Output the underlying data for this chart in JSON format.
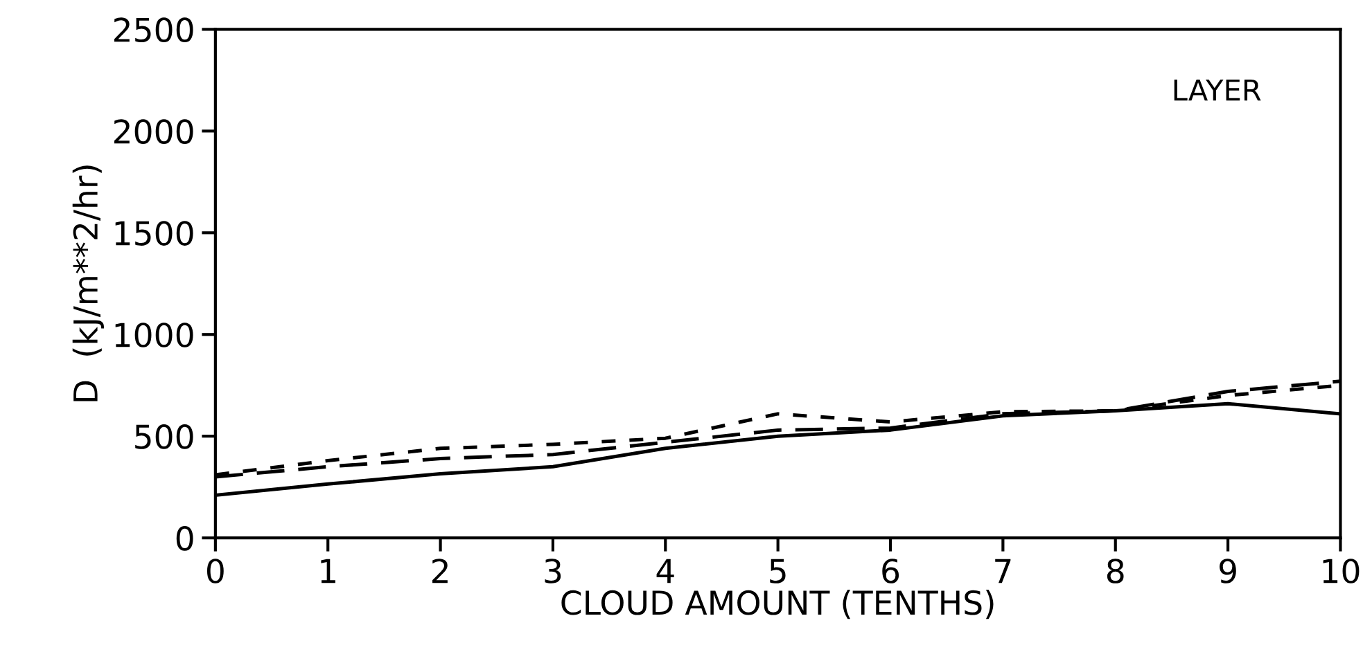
{
  "chart_data": {
    "type": "line",
    "xlabel": "CLOUD AMOUNT (TENTHS)",
    "ylabel": "D  (kJ/m**2/hr)",
    "annotations": [
      "LAYER"
    ],
    "x": [
      0,
      1,
      2,
      3,
      4,
      5,
      6,
      7,
      8,
      9,
      10
    ],
    "series": [
      {
        "color": "#000000",
        "line_style": "solid",
        "values": [
          210,
          265,
          315,
          350,
          440,
          500,
          530,
          600,
          625,
          660,
          610
        ]
      },
      {
        "color": "#000000",
        "line_style": "dashed",
        "values": [
          300,
          350,
          390,
          410,
          470,
          530,
          540,
          610,
          625,
          720,
          770
        ]
      },
      {
        "color": "#000000",
        "line_style": "dotted",
        "values": [
          310,
          380,
          440,
          460,
          490,
          610,
          570,
          620,
          625,
          700,
          750
        ]
      }
    ],
    "xlim": [
      0,
      10
    ],
    "xticks": [
      0,
      1,
      2,
      3,
      4,
      5,
      6,
      7,
      8,
      9,
      10
    ],
    "ylim": [
      0,
      2500
    ],
    "yticks": [
      0,
      500,
      1000,
      1500,
      2000,
      2500
    ],
    "grid": false,
    "marker": "none"
  }
}
